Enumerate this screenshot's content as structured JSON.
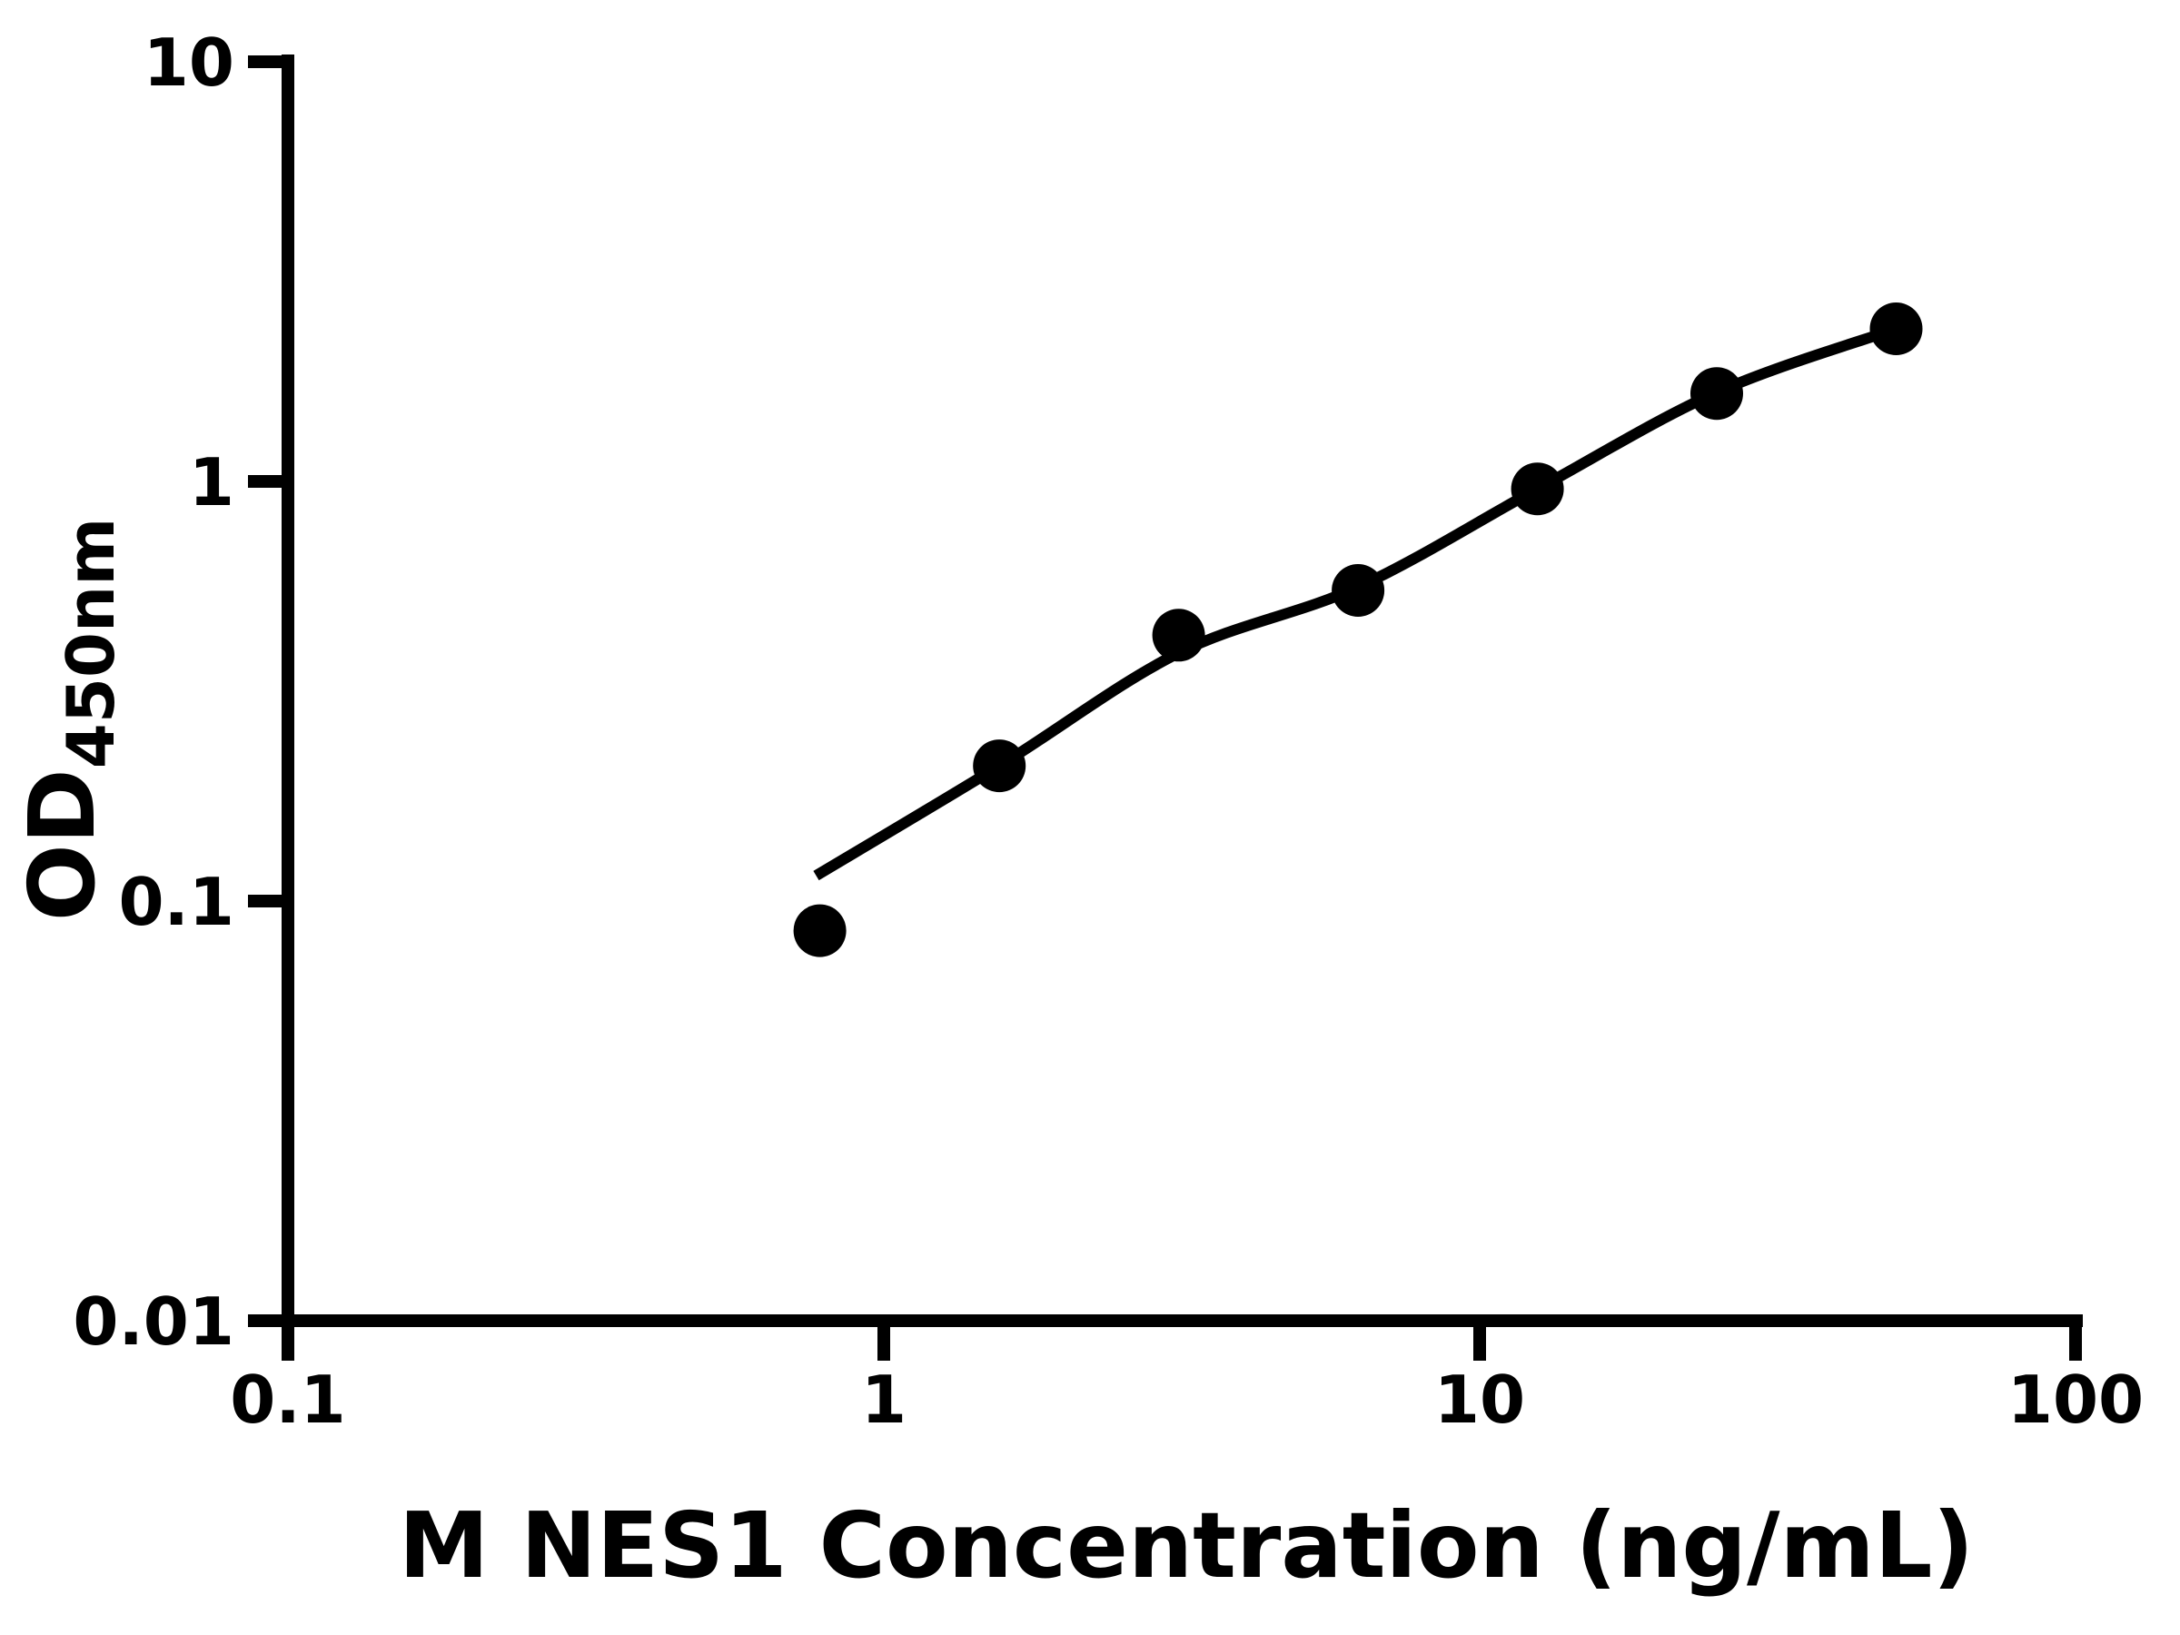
{
  "page": {
    "background_color": "#ffffff",
    "ink_color": "#000000"
  },
  "chart_data": {
    "type": "scatter",
    "title": "",
    "xlabel": "M NES1 Concentration (ng/mL)",
    "ylabel": "OD450nm",
    "ylabel_main": "OD",
    "ylabel_sub": "450nm",
    "x_scale": "log",
    "y_scale": "log",
    "xlim": [
      0.1,
      100
    ],
    "ylim": [
      0.01,
      10
    ],
    "grid": false,
    "legend_position": "none",
    "marker_style": "filled-circle",
    "x_ticks": [
      {
        "value": 0.1,
        "label": "0.1"
      },
      {
        "value": 1,
        "label": "1"
      },
      {
        "value": 10,
        "label": "10"
      },
      {
        "value": 100,
        "label": "100"
      }
    ],
    "y_ticks": [
      {
        "value": 0.01,
        "label": "0.01"
      },
      {
        "value": 0.1,
        "label": "0.1"
      },
      {
        "value": 1,
        "label": "1"
      },
      {
        "value": 10,
        "label": "10"
      }
    ],
    "series": [
      {
        "name": "standard-points",
        "marker": "filled-circle",
        "color": "#000000",
        "points": [
          {
            "x": 0.781,
            "y": 0.085
          },
          {
            "x": 1.563,
            "y": 0.21
          },
          {
            "x": 3.125,
            "y": 0.43
          },
          {
            "x": 6.25,
            "y": 0.55
          },
          {
            "x": 12.5,
            "y": 0.96
          },
          {
            "x": 25,
            "y": 1.62
          },
          {
            "x": 50,
            "y": 2.31
          }
        ]
      }
    ],
    "fit_curve": {
      "name": "fitted-standard-curve",
      "color": "#000000",
      "points": [
        {
          "x": 0.77,
          "y": 0.115
        },
        {
          "x": 1.563,
          "y": 0.21
        },
        {
          "x": 3.125,
          "y": 0.39
        },
        {
          "x": 6.25,
          "y": 0.56
        },
        {
          "x": 12.5,
          "y": 0.96
        },
        {
          "x": 25,
          "y": 1.63
        },
        {
          "x": 50,
          "y": 2.31
        }
      ]
    }
  }
}
